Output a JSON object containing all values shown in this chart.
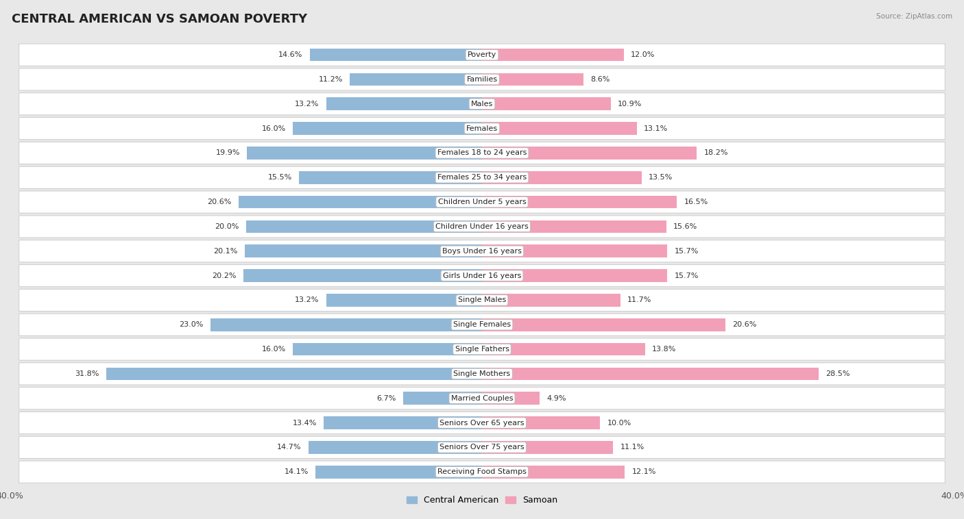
{
  "title": "CENTRAL AMERICAN VS SAMOAN POVERTY",
  "source": "Source: ZipAtlas.com",
  "categories": [
    "Poverty",
    "Families",
    "Males",
    "Females",
    "Females 18 to 24 years",
    "Females 25 to 34 years",
    "Children Under 5 years",
    "Children Under 16 years",
    "Boys Under 16 years",
    "Girls Under 16 years",
    "Single Males",
    "Single Females",
    "Single Fathers",
    "Single Mothers",
    "Married Couples",
    "Seniors Over 65 years",
    "Seniors Over 75 years",
    "Receiving Food Stamps"
  ],
  "central_american": [
    14.6,
    11.2,
    13.2,
    16.0,
    19.9,
    15.5,
    20.6,
    20.0,
    20.1,
    20.2,
    13.2,
    23.0,
    16.0,
    31.8,
    6.7,
    13.4,
    14.7,
    14.1
  ],
  "samoan": [
    12.0,
    8.6,
    10.9,
    13.1,
    18.2,
    13.5,
    16.5,
    15.6,
    15.7,
    15.7,
    11.7,
    20.6,
    13.8,
    28.5,
    4.9,
    10.0,
    11.1,
    12.1
  ],
  "bar_color_central": "#92b8d8",
  "bar_color_samoan": "#f2a0b8",
  "fig_bg": "#e8e8e8",
  "row_bg": "#ffffff",
  "row_border": "#d0d0d0",
  "axis_max": 40.0,
  "legend_label_central": "Central American",
  "legend_label_samoan": "Samoan",
  "bar_height": 0.52,
  "title_fontsize": 13,
  "label_fontsize": 8.0,
  "value_fontsize": 8.0
}
